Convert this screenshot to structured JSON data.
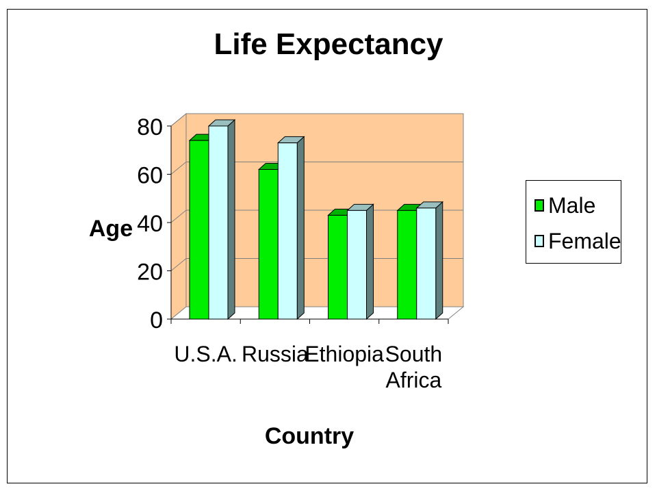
{
  "chart_data": {
    "type": "bar",
    "title": "Life Expectancy",
    "xlabel": "Country",
    "ylabel": "Age",
    "categories": [
      [
        "U.S.A."
      ],
      [
        "Russia"
      ],
      [
        "Ethiopia"
      ],
      [
        "South",
        "Africa"
      ]
    ],
    "series": [
      {
        "name": "Male",
        "values": [
          74,
          62,
          43,
          45
        ],
        "color": "#00ee00"
      },
      {
        "name": "Female",
        "values": [
          80,
          73,
          45,
          46
        ],
        "color": "#ccffff"
      }
    ],
    "ylim": [
      0,
      80
    ],
    "yticks": [
      "0",
      "20",
      "40",
      "60",
      "80"
    ],
    "grid": true,
    "legend_position": "right",
    "wall_color": "#ffcc99"
  }
}
